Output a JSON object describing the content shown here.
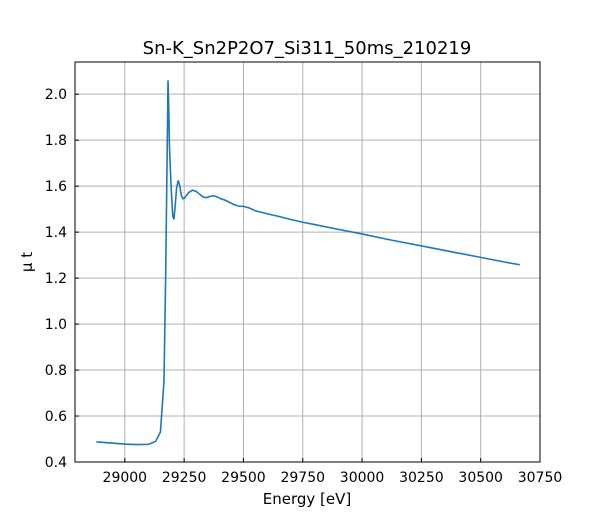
{
  "chart_data": {
    "type": "line",
    "title": "Sn-K_Sn2P2O7_Si311_50ms_210219",
    "xlabel": "Energy [eV]",
    "ylabel": "μ t",
    "xlim": [
      28790,
      30750
    ],
    "ylim": [
      0.4,
      2.14
    ],
    "xticks": [
      29000,
      29250,
      29500,
      29750,
      30000,
      30250,
      30500,
      30750
    ],
    "yticks": [
      0.4,
      0.6,
      0.8,
      1.0,
      1.2,
      1.4,
      1.6,
      1.8,
      2.0
    ],
    "grid": true,
    "line_color": "#1f77b4",
    "series": [
      {
        "x": [
          28880,
          28950,
          29000,
          29050,
          29100,
          29130,
          29150,
          29165,
          29172,
          29178,
          29182,
          29185,
          29188,
          29192,
          29197,
          29202,
          29207,
          29212,
          29218,
          29225,
          29232,
          29238,
          29245,
          29252,
          29260,
          29270,
          29285,
          29300,
          29315,
          29330,
          29345,
          29360,
          29375,
          29390,
          29405,
          29420,
          29440,
          29460,
          29480,
          29500,
          29525,
          29550,
          29600,
          29650,
          29700,
          29750,
          29800,
          29900,
          30000,
          30100,
          30200,
          30300,
          30400,
          30500,
          30600,
          30665
        ],
        "y": [
          0.488,
          0.482,
          0.478,
          0.476,
          0.477,
          0.49,
          0.53,
          0.75,
          1.2,
          1.7,
          2.06,
          1.95,
          1.78,
          1.67,
          1.56,
          1.47,
          1.455,
          1.51,
          1.59,
          1.625,
          1.6,
          1.56,
          1.545,
          1.548,
          1.56,
          1.573,
          1.582,
          1.578,
          1.565,
          1.553,
          1.55,
          1.556,
          1.558,
          1.553,
          1.545,
          1.54,
          1.53,
          1.52,
          1.513,
          1.512,
          1.505,
          1.493,
          1.48,
          1.468,
          1.455,
          1.443,
          1.433,
          1.412,
          1.392,
          1.37,
          1.35,
          1.33,
          1.31,
          1.29,
          1.27,
          1.258
        ]
      }
    ]
  }
}
